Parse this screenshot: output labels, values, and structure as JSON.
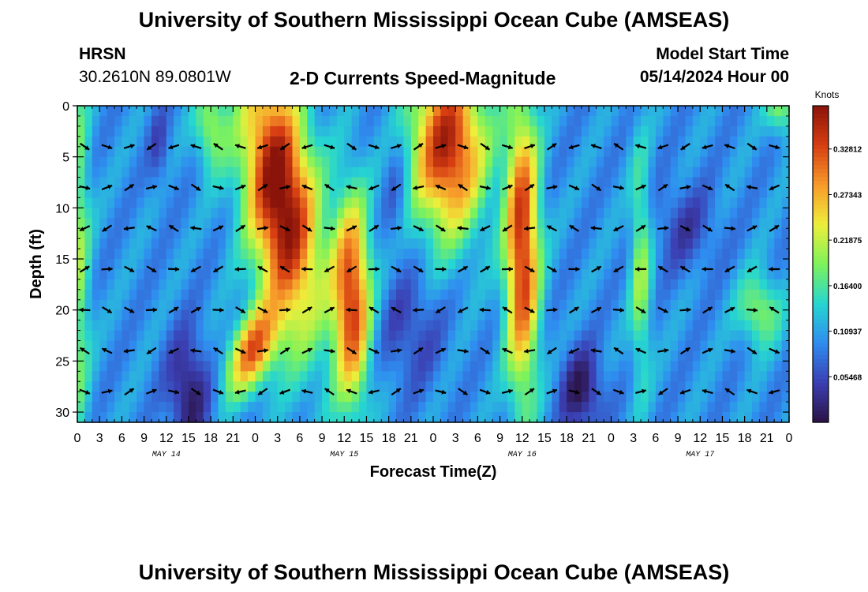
{
  "header": {
    "title": "University of Southern Mississippi Ocean Cube (AMSEAS)",
    "station": "HRSN",
    "location": "30.2610N  89.0801W",
    "product": "2-D Currents Speed-Magnitude",
    "model_start_label": "Model Start Time",
    "model_start_value": "05/14/2024 Hour 00"
  },
  "footer": {
    "title": "University of Southern Mississippi Ocean Cube (AMSEAS)"
  },
  "chart_data": {
    "type": "heatmap",
    "title": "2-D Currents Speed-Magnitude",
    "xlabel": "Forecast Time(Z)",
    "ylabel": "Depth (ft)",
    "xlim": [
      0,
      96
    ],
    "ylim": [
      0,
      31
    ],
    "x_tick_labels": [
      "0",
      "3",
      "6",
      "9",
      "12",
      "15",
      "18",
      "21",
      "0",
      "3",
      "6",
      "9",
      "12",
      "15",
      "18",
      "21",
      "0",
      "3",
      "6",
      "9",
      "12",
      "15",
      "18",
      "21",
      "0",
      "3",
      "6",
      "9",
      "12",
      "15",
      "18",
      "21",
      "0"
    ],
    "y_ticks": [
      0,
      5,
      10,
      15,
      20,
      25,
      30
    ],
    "day_labels": [
      "MAY 14",
      "MAY 15",
      "MAY 16",
      "MAY 17"
    ],
    "colorbar": {
      "label": "Knots",
      "ticks": [
        0.05468,
        0.10937,
        0.164,
        0.21875,
        0.27343,
        0.32812
      ],
      "tick_labels": [
        "0.05468",
        "0.10937",
        "0.16400",
        "0.21875",
        "0.27343",
        "0.32812"
      ],
      "range": [
        0,
        0.38
      ]
    },
    "colors": {
      "c0": "#2b1246",
      "c1": "#3b3fb3",
      "c2": "#2f8cf0",
      "c3": "#26d6d0",
      "c4": "#7ef25a",
      "c5": "#eeee3a",
      "c6": "#f79a2a",
      "c7": "#d63d12",
      "c8": "#8a140a"
    },
    "arrow_depths": [
      4,
      8,
      12,
      16,
      20,
      24,
      28
    ]
  }
}
